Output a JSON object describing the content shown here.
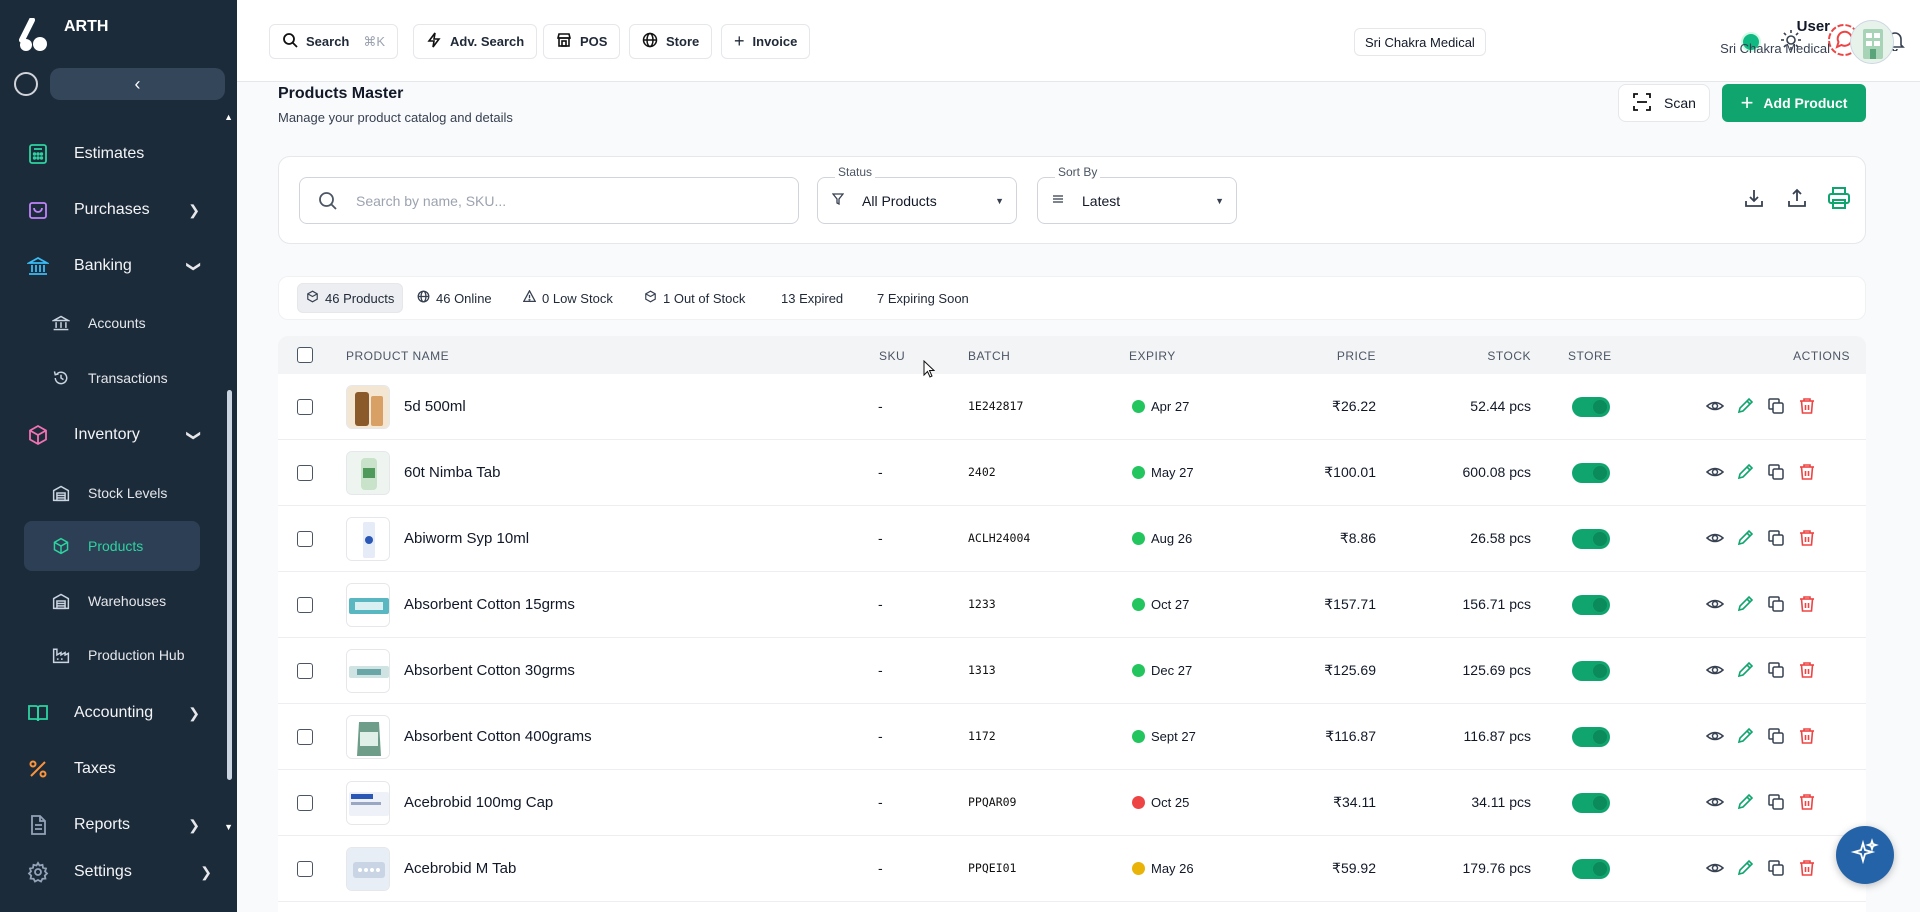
{
  "brand": {
    "name": "ARTH"
  },
  "sidebar": {
    "items": [
      {
        "label": "Estimates",
        "icon": "calculator-icon"
      },
      {
        "label": "Purchases",
        "icon": "bag-icon"
      },
      {
        "label": "Banking",
        "icon": "bank-icon"
      },
      {
        "label": "Accounts",
        "icon": "bank-building-icon"
      },
      {
        "label": "Transactions",
        "icon": "history-icon"
      },
      {
        "label": "Inventory",
        "icon": "box-icon"
      },
      {
        "label": "Stock Levels",
        "icon": "warehouse-icon"
      },
      {
        "label": "Products",
        "icon": "cube-icon"
      },
      {
        "label": "Warehouses",
        "icon": "warehouse-icon"
      },
      {
        "label": "Production Hub",
        "icon": "factory-icon"
      },
      {
        "label": "Accounting",
        "icon": "book-icon"
      },
      {
        "label": "Taxes",
        "icon": "percent-icon"
      },
      {
        "label": "Reports",
        "icon": "file-icon"
      },
      {
        "label": "Settings",
        "icon": "gear-icon"
      }
    ]
  },
  "topbar": {
    "search_label": "Search",
    "search_kbd": "⌘K",
    "adv_search_label": "Adv. Search",
    "pos_label": "POS",
    "store_label": "Store",
    "invoice_label": "Invoice",
    "org": "Sri Chakra Medical",
    "user_name": "User",
    "user_org": "Sri Chakra Medical"
  },
  "page": {
    "title": "Products Master",
    "subtitle": "Manage your product catalog and details",
    "scan_label": "Scan",
    "add_label": "Add Product"
  },
  "filters": {
    "search_placeholder": "Search by name, SKU...",
    "status_label": "Status",
    "status_value": "All Products",
    "sort_label": "Sort By",
    "sort_value": "Latest"
  },
  "chips": {
    "products": "46 Products",
    "online": "46 Online",
    "low_stock": "0 Low Stock",
    "out_of_stock": "1 Out of Stock",
    "expired": "13 Expired",
    "expiring": "7 Expiring Soon"
  },
  "table": {
    "headers": {
      "name": "PRODUCT NAME",
      "sku": "SKU",
      "batch": "BATCH",
      "expiry": "EXPIRY",
      "price": "PRICE",
      "stock": "STOCK",
      "store": "STORE",
      "actions": "ACTIONS"
    },
    "rows": [
      {
        "name": "5d 500ml",
        "sku": "-",
        "batch": "1E242817",
        "expiry": "Apr 27",
        "expiry_color": "#22c55e",
        "price": "₹26.22",
        "stock": "52.44 pcs"
      },
      {
        "name": "60t Nimba Tab",
        "sku": "-",
        "batch": "2402",
        "expiry": "May 27",
        "expiry_color": "#22c55e",
        "price": "₹100.01",
        "stock": "600.08 pcs"
      },
      {
        "name": "Abiworm Syp 10ml",
        "sku": "-",
        "batch": "ACLH24004",
        "expiry": "Aug 26",
        "expiry_color": "#22c55e",
        "price": "₹8.86",
        "stock": "26.58 pcs"
      },
      {
        "name": "Absorbent Cotton 15grms",
        "sku": "-",
        "batch": "1233",
        "expiry": "Oct 27",
        "expiry_color": "#22c55e",
        "price": "₹157.71",
        "stock": "156.71 pcs"
      },
      {
        "name": "Absorbent Cotton 30grms",
        "sku": "-",
        "batch": "1313",
        "expiry": "Dec 27",
        "expiry_color": "#22c55e",
        "price": "₹125.69",
        "stock": "125.69 pcs"
      },
      {
        "name": "Absorbent Cotton 400grams",
        "sku": "-",
        "batch": "1172",
        "expiry": "Sept 27",
        "expiry_color": "#22c55e",
        "price": "₹116.87",
        "stock": "116.87 pcs"
      },
      {
        "name": "Acebrobid 100mg Cap",
        "sku": "-",
        "batch": "PPQAR09",
        "expiry": "Oct 25",
        "expiry_color": "#ef4444",
        "price": "₹34.11",
        "stock": "34.11 pcs"
      },
      {
        "name": "Acebrobid M Tab",
        "sku": "-",
        "batch": "PPQEI01",
        "expiry": "May 26",
        "expiry_color": "#eab308",
        "price": "₹59.92",
        "stock": "179.76 pcs"
      }
    ]
  },
  "colors": {
    "accent": "#10a56e",
    "sidebar_bg": "#1c2b3a",
    "danger": "#ef4444"
  }
}
